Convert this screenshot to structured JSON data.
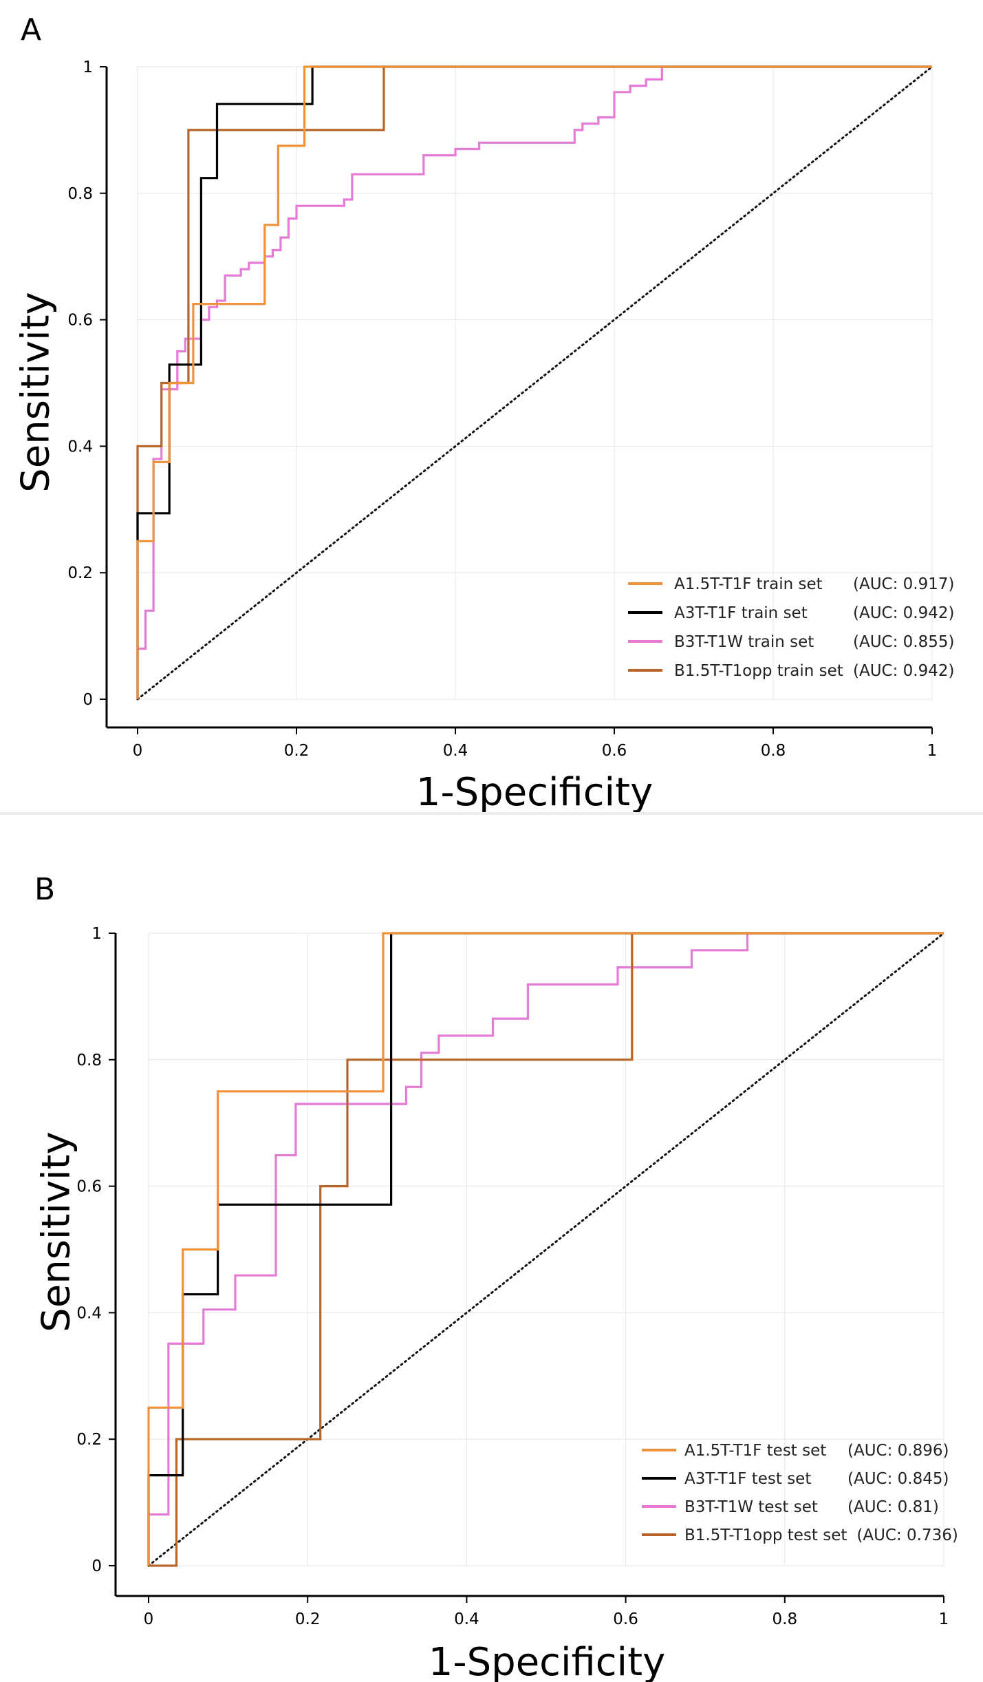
{
  "chart_data": [
    {
      "type": "line",
      "panel_label": "A",
      "xlabel": "1-Specificity",
      "ylabel": "Sensitivity",
      "xlim": [
        0,
        1
      ],
      "ylim": [
        0,
        1
      ],
      "xticks": [
        "0",
        "0.2",
        "0.4",
        "0.6",
        "0.8",
        "1"
      ],
      "yticks": [
        "0",
        "0.2",
        "0.4",
        "0.6",
        "0.8",
        "1"
      ],
      "grid": true,
      "legend_position": "bottom-right",
      "reference_line": {
        "name": "chance",
        "style": "dotted",
        "color": "#111111",
        "points": [
          [
            0,
            0
          ],
          [
            1,
            1
          ]
        ]
      },
      "series": [
        {
          "name": "A1.5T-T1F train set",
          "auc_label": "(AUC: 0.917)",
          "color": "#f0923a",
          "points": [
            [
              0,
              0
            ],
            [
              0,
              0.25
            ],
            [
              0.02,
              0.25
            ],
            [
              0.02,
              0.375
            ],
            [
              0.04,
              0.375
            ],
            [
              0.04,
              0.5
            ],
            [
              0.07,
              0.5
            ],
            [
              0.07,
              0.625
            ],
            [
              0.16,
              0.625
            ],
            [
              0.16,
              0.75
            ],
            [
              0.177,
              0.75
            ],
            [
              0.177,
              0.875
            ],
            [
              0.21,
              0.875
            ],
            [
              0.21,
              1
            ],
            [
              1,
              1
            ]
          ]
        },
        {
          "name": "A3T-T1F train set",
          "auc_label": "(AUC: 0.942)",
          "color": "#000000",
          "points": [
            [
              0,
              0
            ],
            [
              0,
              0.294
            ],
            [
              0.04,
              0.294
            ],
            [
              0.04,
              0.529
            ],
            [
              0.08,
              0.529
            ],
            [
              0.08,
              0.824
            ],
            [
              0.1,
              0.824
            ],
            [
              0.1,
              0.941
            ],
            [
              0.22,
              0.941
            ],
            [
              0.22,
              1
            ],
            [
              1,
              1
            ]
          ]
        },
        {
          "name": "B3T-T1W train set",
          "auc_label": "(AUC: 0.855)",
          "color": "#e67bd6",
          "points": [
            [
              0,
              0
            ],
            [
              0,
              0.08
            ],
            [
              0.01,
              0.08
            ],
            [
              0.01,
              0.14
            ],
            [
              0.02,
              0.14
            ],
            [
              0.02,
              0.38
            ],
            [
              0.03,
              0.38
            ],
            [
              0.03,
              0.49
            ],
            [
              0.05,
              0.49
            ],
            [
              0.05,
              0.55
            ],
            [
              0.06,
              0.55
            ],
            [
              0.06,
              0.57
            ],
            [
              0.08,
              0.57
            ],
            [
              0.08,
              0.6
            ],
            [
              0.09,
              0.6
            ],
            [
              0.09,
              0.62
            ],
            [
              0.1,
              0.62
            ],
            [
              0.1,
              0.63
            ],
            [
              0.11,
              0.63
            ],
            [
              0.11,
              0.67
            ],
            [
              0.13,
              0.67
            ],
            [
              0.13,
              0.68
            ],
            [
              0.14,
              0.68
            ],
            [
              0.14,
              0.69
            ],
            [
              0.16,
              0.69
            ],
            [
              0.16,
              0.7
            ],
            [
              0.17,
              0.7
            ],
            [
              0.17,
              0.71
            ],
            [
              0.18,
              0.71
            ],
            [
              0.18,
              0.73
            ],
            [
              0.19,
              0.73
            ],
            [
              0.19,
              0.76
            ],
            [
              0.2,
              0.76
            ],
            [
              0.2,
              0.78
            ],
            [
              0.26,
              0.78
            ],
            [
              0.26,
              0.79
            ],
            [
              0.27,
              0.79
            ],
            [
              0.27,
              0.83
            ],
            [
              0.36,
              0.83
            ],
            [
              0.36,
              0.86
            ],
            [
              0.4,
              0.86
            ],
            [
              0.4,
              0.87
            ],
            [
              0.43,
              0.87
            ],
            [
              0.43,
              0.88
            ],
            [
              0.55,
              0.88
            ],
            [
              0.55,
              0.9
            ],
            [
              0.56,
              0.9
            ],
            [
              0.56,
              0.91
            ],
            [
              0.58,
              0.91
            ],
            [
              0.58,
              0.92
            ],
            [
              0.6,
              0.92
            ],
            [
              0.6,
              0.96
            ],
            [
              0.62,
              0.96
            ],
            [
              0.62,
              0.97
            ],
            [
              0.64,
              0.97
            ],
            [
              0.64,
              0.98
            ],
            [
              0.66,
              0.98
            ],
            [
              0.66,
              1
            ],
            [
              1,
              1
            ]
          ]
        },
        {
          "name": "B1.5T-T1opp train set",
          "auc_label": "(AUC: 0.942)",
          "color": "#b8652a",
          "points": [
            [
              0,
              0
            ],
            [
              0,
              0.4
            ],
            [
              0.03,
              0.4
            ],
            [
              0.03,
              0.5
            ],
            [
              0.064,
              0.5
            ],
            [
              0.064,
              0.9
            ],
            [
              0.31,
              0.9
            ],
            [
              0.31,
              1
            ],
            [
              1,
              1
            ]
          ]
        }
      ]
    },
    {
      "type": "line",
      "panel_label": "B",
      "xlabel": "1-Specificity",
      "ylabel": "Sensitivity",
      "xlim": [
        0,
        1
      ],
      "ylim": [
        0,
        1
      ],
      "xticks": [
        "0",
        "0.2",
        "0.4",
        "0.6",
        "0.8",
        "1"
      ],
      "yticks": [
        "0",
        "0.2",
        "0.4",
        "0.6",
        "0.8",
        "1"
      ],
      "grid": true,
      "legend_position": "bottom-right",
      "reference_line": {
        "name": "chance",
        "style": "dotted",
        "color": "#111111",
        "points": [
          [
            0,
            0
          ],
          [
            1,
            1
          ]
        ]
      },
      "series": [
        {
          "name": "A1.5T-T1F test set",
          "auc_label": "(AUC: 0.896)",
          "color": "#f0923a",
          "points": [
            [
              0,
              0
            ],
            [
              0,
              0.25
            ],
            [
              0.043,
              0.25
            ],
            [
              0.043,
              0.5
            ],
            [
              0.087,
              0.5
            ],
            [
              0.087,
              0.75
            ],
            [
              0.295,
              0.75
            ],
            [
              0.295,
              1
            ],
            [
              1,
              1
            ]
          ]
        },
        {
          "name": "A3T-T1F test set",
          "auc_label": "(AUC: 0.845)",
          "color": "#000000",
          "points": [
            [
              0,
              0
            ],
            [
              0,
              0.143
            ],
            [
              0.043,
              0.143
            ],
            [
              0.043,
              0.429
            ],
            [
              0.087,
              0.429
            ],
            [
              0.087,
              0.571
            ],
            [
              0.305,
              0.571
            ],
            [
              0.305,
              1
            ],
            [
              1,
              1
            ]
          ]
        },
        {
          "name": "B3T-T1W test set",
          "auc_label": "(AUC: 0.81)",
          "color": "#e67bd6",
          "points": [
            [
              0,
              0
            ],
            [
              0,
              0.081
            ],
            [
              0.025,
              0.081
            ],
            [
              0.025,
              0.351
            ],
            [
              0.069,
              0.351
            ],
            [
              0.069,
              0.405
            ],
            [
              0.109,
              0.405
            ],
            [
              0.109,
              0.459
            ],
            [
              0.16,
              0.459
            ],
            [
              0.16,
              0.649
            ],
            [
              0.185,
              0.649
            ],
            [
              0.185,
              0.73
            ],
            [
              0.324,
              0.73
            ],
            [
              0.324,
              0.757
            ],
            [
              0.343,
              0.757
            ],
            [
              0.343,
              0.811
            ],
            [
              0.365,
              0.811
            ],
            [
              0.365,
              0.838
            ],
            [
              0.433,
              0.838
            ],
            [
              0.433,
              0.865
            ],
            [
              0.477,
              0.865
            ],
            [
              0.477,
              0.919
            ],
            [
              0.59,
              0.919
            ],
            [
              0.59,
              0.946
            ],
            [
              0.683,
              0.946
            ],
            [
              0.683,
              0.973
            ],
            [
              0.753,
              0.973
            ],
            [
              0.753,
              1
            ],
            [
              1,
              1
            ]
          ]
        },
        {
          "name": "B1.5T-T1opp test set",
          "auc_label": "(AUC: 0.736)",
          "color": "#b8652a",
          "points": [
            [
              0,
              0
            ],
            [
              0.035,
              0
            ],
            [
              0.035,
              0.2
            ],
            [
              0.216,
              0.2
            ],
            [
              0.216,
              0.6
            ],
            [
              0.25,
              0.6
            ],
            [
              0.25,
              0.8
            ],
            [
              0.608,
              0.8
            ],
            [
              0.608,
              1
            ],
            [
              1,
              1
            ]
          ]
        }
      ]
    }
  ]
}
